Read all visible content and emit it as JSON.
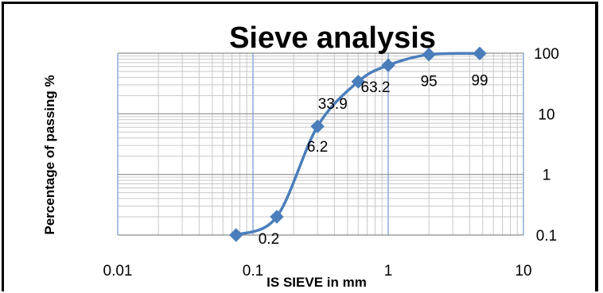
{
  "chart_data": {
    "type": "line",
    "title": "Sieve analysis",
    "xlabel": "IS SIEVE in mm",
    "ylabel": "Percentage of passing %",
    "x_scale": "log",
    "y_scale": "log",
    "xlim": [
      0.01,
      10
    ],
    "ylim": [
      0.1,
      100
    ],
    "x_ticks": [
      "0.01",
      "0.1",
      "1",
      "10"
    ],
    "y_ticks": [
      "0.1",
      "1",
      "10",
      "100"
    ],
    "grid": true,
    "legend": "none",
    "series": [
      {
        "color": "#4a7ebb",
        "marker": "diamond",
        "smooth": true,
        "points": [
          {
            "x": 0.075,
            "y": 0.1,
            "label": ""
          },
          {
            "x": 0.15,
            "y": 0.2,
            "label": "0.2"
          },
          {
            "x": 0.3,
            "y": 6.2,
            "label": "6.2"
          },
          {
            "x": 0.6,
            "y": 33.9,
            "label": "33.9"
          },
          {
            "x": 1.0,
            "y": 63.2,
            "label": "63.2"
          },
          {
            "x": 2.0,
            "y": 95,
            "label": "95"
          },
          {
            "x": 4.75,
            "y": 99,
            "label": "99"
          }
        ]
      }
    ]
  }
}
